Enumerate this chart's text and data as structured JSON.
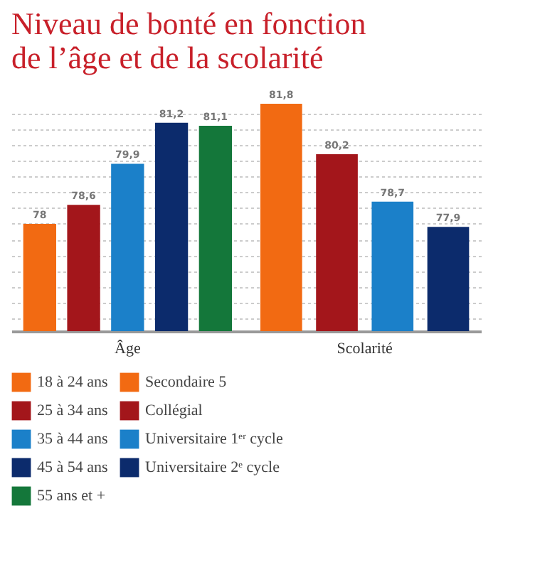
{
  "chart_data": {
    "type": "bar",
    "title": "Niveau de bonté en fonction\nde l’âge et de la scolarité",
    "categories": [
      "Âge",
      "Scolarité"
    ],
    "series": [
      {
        "name": "18 à 24 ans",
        "color": "#f26a12",
        "values": [
          78,
          null
        ],
        "value_labels": [
          "78",
          null
        ]
      },
      {
        "name": "25 à 34 ans",
        "color": "#a3161b",
        "values": [
          78.6,
          null
        ],
        "value_labels": [
          "78,6",
          null
        ]
      },
      {
        "name": "35 à 44 ans",
        "color": "#1b80c9",
        "values": [
          79.9,
          null
        ],
        "value_labels": [
          "79,9",
          null
        ]
      },
      {
        "name": "45 à 54 ans",
        "color": "#0c2b6c",
        "values": [
          81.2,
          null
        ],
        "value_labels": [
          "81,2",
          null
        ]
      },
      {
        "name": "55 ans et +",
        "color": "#14773a",
        "values": [
          81.1,
          null
        ],
        "value_labels": [
          "81,1",
          null
        ]
      },
      {
        "name": "Secondaire 5",
        "color": "#f26a12",
        "values": [
          null,
          81.8
        ],
        "value_labels": [
          null,
          "81,8"
        ]
      },
      {
        "name": "Collégial",
        "color": "#a3161b",
        "values": [
          null,
          80.2
        ],
        "value_labels": [
          null,
          "80,2"
        ]
      },
      {
        "name": "Universitaire 1ᵉʳ cycle",
        "color": "#1b80c9",
        "values": [
          null,
          78.7
        ],
        "value_labels": [
          null,
          "78,7"
        ]
      },
      {
        "name": "Universitaire 2ᵉ cycle",
        "color": "#0c2b6c",
        "values": [
          null,
          77.9
        ],
        "value_labels": [
          null,
          "77,9"
        ]
      }
    ],
    "ylim": [
      74.6,
      81.8
    ],
    "grid": "y",
    "tick_labels": "x",
    "legend": "bottom"
  }
}
